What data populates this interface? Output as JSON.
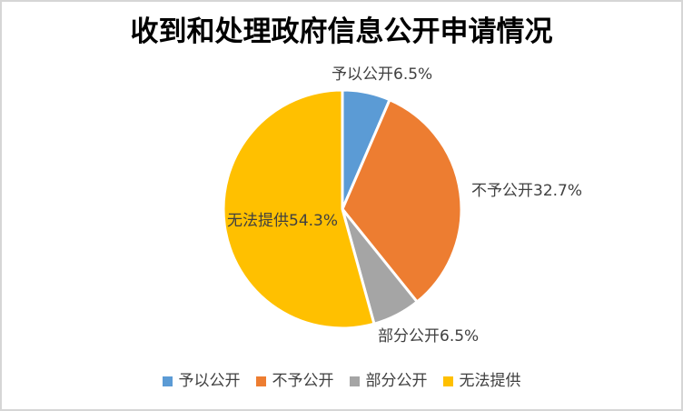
{
  "window": {
    "background": "#FFFFFF",
    "border_color": "#D6D6D6"
  },
  "chart_data": {
    "type": "pie",
    "title": "收到和处理政府信息公开申请情况",
    "categories": [
      "予以公开",
      "不予公开",
      "部分公开",
      "无法提供"
    ],
    "values": [
      6.5,
      32.7,
      6.5,
      54.3
    ],
    "unit": "%",
    "colors": [
      "#5B9BD5",
      "#ED7D31",
      "#A5A5A5",
      "#FFC000"
    ],
    "start_angle_deg": 0,
    "direction": "clockwise",
    "slice_border_color": "#FFFFFF",
    "legend_position": "bottom",
    "title_color": "#000000",
    "label_color": "#404040",
    "data_labels": [
      {
        "text": "予以公开6.5%"
      },
      {
        "text": "不予公开32.7%"
      },
      {
        "text": "部分公开6.5%"
      },
      {
        "text": "无法提供54.3%"
      }
    ],
    "legend": [
      {
        "label": "予以公开"
      },
      {
        "label": "不予公开"
      },
      {
        "label": "部分公开"
      },
      {
        "label": "无法提供"
      }
    ]
  }
}
